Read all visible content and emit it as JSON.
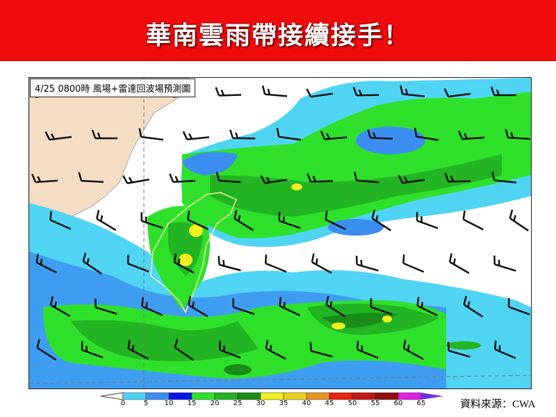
{
  "banner": {
    "title": "華南雲雨帶接續接手！",
    "color": "#f00c0c"
  },
  "map": {
    "label": "4/25 0800時  風場+雷達回波場預測圖",
    "land_color": "#f5dcc4"
  },
  "colorbar": {
    "ticks": [
      "0",
      "5",
      "10",
      "15",
      "20",
      "25",
      "30",
      "35",
      "40",
      "45",
      "50",
      "55",
      "60",
      "65"
    ],
    "colors": [
      "#4fd4f4",
      "#3b8ef0",
      "#0a14e6",
      "#2fe02a",
      "#22b422",
      "#1a8c1a",
      "#f0f020",
      "#e8d020",
      "#e89020",
      "#e82010",
      "#c01818",
      "#901010",
      "#e020e0"
    ],
    "overflow_color": "#7030e0"
  },
  "source": "資料來源：CWA"
}
